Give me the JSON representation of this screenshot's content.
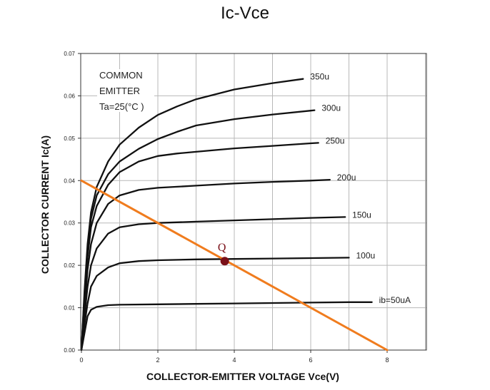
{
  "chart_data": {
    "type": "line",
    "title": "Ic-Vce",
    "xlabel": "COLLECTOR-EMITTER VOLTAGE Vce(V)",
    "ylabel": "COLLECTOR CURRENT Ic(A)",
    "xlim": [
      0,
      9
    ],
    "ylim": [
      0,
      0.07
    ],
    "x_ticks": [
      0,
      2,
      4,
      6,
      8
    ],
    "x_tick_labels": [
      "0",
      "2",
      "4",
      "6",
      "8"
    ],
    "y_ticks": [
      0,
      0.01,
      0.02,
      0.03,
      0.04,
      0.05,
      0.06,
      0.07
    ],
    "y_tick_labels": [
      "0.00",
      "0.01",
      "0.02",
      "0.03",
      "0.04",
      "0.05",
      "0.06",
      "0.07"
    ],
    "grid": true,
    "annotation_lines": [
      "COMMON",
      "EMITTER",
      "Ta=25(°C )"
    ],
    "series": [
      {
        "name": "ib=50uA",
        "label": "ib=50uA",
        "x": [
          0,
          0.08,
          0.16,
          0.25,
          0.4,
          0.7,
          1.0,
          2.0,
          3.0,
          4.0,
          5.0,
          6.0,
          7.0,
          7.6
        ],
        "y": [
          0,
          0.004,
          0.008,
          0.0095,
          0.0102,
          0.0106,
          0.0107,
          0.0108,
          0.0109,
          0.011,
          0.0111,
          0.0112,
          0.0113,
          0.0113
        ]
      },
      {
        "name": "100u",
        "label": "100u",
        "x": [
          0,
          0.08,
          0.16,
          0.25,
          0.4,
          0.7,
          1.0,
          1.5,
          2.0,
          3.0,
          4.0,
          5.0,
          6.0,
          7.0
        ],
        "y": [
          0,
          0.006,
          0.011,
          0.015,
          0.0175,
          0.0195,
          0.0205,
          0.021,
          0.0212,
          0.0214,
          0.0215,
          0.0216,
          0.0217,
          0.0218
        ]
      },
      {
        "name": "150u",
        "label": "150u",
        "x": [
          0,
          0.08,
          0.16,
          0.25,
          0.4,
          0.7,
          1.0,
          1.5,
          2.0,
          3.0,
          4.0,
          5.0,
          6.0,
          6.9
        ],
        "y": [
          0,
          0.008,
          0.015,
          0.02,
          0.024,
          0.0275,
          0.029,
          0.0297,
          0.03,
          0.0303,
          0.0306,
          0.0309,
          0.0312,
          0.0314
        ]
      },
      {
        "name": "200u",
        "label": "200u",
        "x": [
          0,
          0.08,
          0.16,
          0.25,
          0.4,
          0.7,
          1.0,
          1.5,
          2.0,
          3.0,
          4.0,
          5.0,
          6.0,
          6.5
        ],
        "y": [
          0,
          0.01,
          0.019,
          0.025,
          0.03,
          0.0345,
          0.0365,
          0.0378,
          0.0383,
          0.0388,
          0.0393,
          0.0397,
          0.04,
          0.0402
        ]
      },
      {
        "name": "250u",
        "label": "250u",
        "x": [
          0,
          0.08,
          0.16,
          0.25,
          0.4,
          0.7,
          1.0,
          1.5,
          2.0,
          2.5,
          3.0,
          4.0,
          5.0,
          6.0,
          6.2
        ],
        "y": [
          0,
          0.012,
          0.022,
          0.029,
          0.034,
          0.039,
          0.042,
          0.0445,
          0.0458,
          0.0464,
          0.0468,
          0.0476,
          0.0482,
          0.0488,
          0.0489
        ]
      },
      {
        "name": "300u",
        "label": "300u",
        "x": [
          0,
          0.08,
          0.16,
          0.25,
          0.4,
          0.7,
          1.0,
          1.5,
          2.0,
          2.5,
          3.0,
          4.0,
          5.0,
          6.0,
          6.1
        ],
        "y": [
          0,
          0.013,
          0.024,
          0.031,
          0.0365,
          0.0415,
          0.0445,
          0.0475,
          0.0498,
          0.0515,
          0.053,
          0.0545,
          0.0556,
          0.0565,
          0.0566
        ]
      },
      {
        "name": "350u",
        "label": "350u",
        "x": [
          0,
          0.08,
          0.16,
          0.25,
          0.4,
          0.7,
          1.0,
          1.5,
          2.0,
          2.5,
          3.0,
          4.0,
          5.0,
          5.8
        ],
        "y": [
          0,
          0.014,
          0.025,
          0.0325,
          0.0385,
          0.0445,
          0.0485,
          0.0525,
          0.0555,
          0.0575,
          0.0592,
          0.0615,
          0.063,
          0.064
        ]
      }
    ],
    "load_line": {
      "x": [
        0,
        8
      ],
      "y": [
        0.04,
        0
      ],
      "color": "#f07c1e"
    },
    "q_point": {
      "label": "Q",
      "x": 3.75,
      "y": 0.021,
      "color": "#7a1018"
    }
  }
}
